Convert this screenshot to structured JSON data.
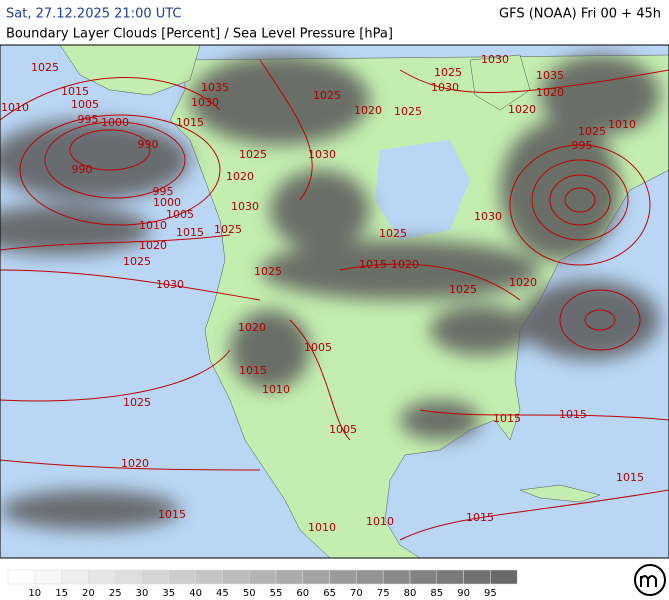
{
  "header": {
    "datetime": "Sat, 27.12.2025 21:00 UTC",
    "model": "GFS (NOAA) Fri 00 + 45h",
    "title": "Boundary Layer Clouds [Percent] / Sea Level Pressure [hPa]"
  },
  "map": {
    "isobar_labels": [
      "1025",
      "1015",
      "1010",
      "1005",
      "995",
      "1000",
      "990",
      "990",
      "995",
      "1000",
      "1005",
      "1010",
      "1015",
      "1020",
      "1025",
      "1030",
      "1025",
      "1025",
      "1030",
      "1020",
      "1025",
      "1030",
      "1035",
      "1015",
      "1030",
      "1025",
      "1020",
      "1025",
      "1025",
      "1030",
      "1015",
      "1020",
      "1025",
      "1020",
      "1030",
      "1025",
      "1030",
      "1035",
      "1020",
      "1020",
      "1025",
      "1010",
      "995",
      "1020",
      "1015",
      "1010",
      "1005",
      "1005",
      "1025",
      "1020",
      "1015",
      "1015",
      "1015",
      "1015",
      "1015",
      "1010",
      "1010"
    ]
  },
  "legend": {
    "labels": [
      10,
      15,
      20,
      25,
      30,
      35,
      40,
      45,
      50,
      55,
      60,
      65,
      70,
      75,
      80,
      85,
      90,
      95
    ]
  }
}
